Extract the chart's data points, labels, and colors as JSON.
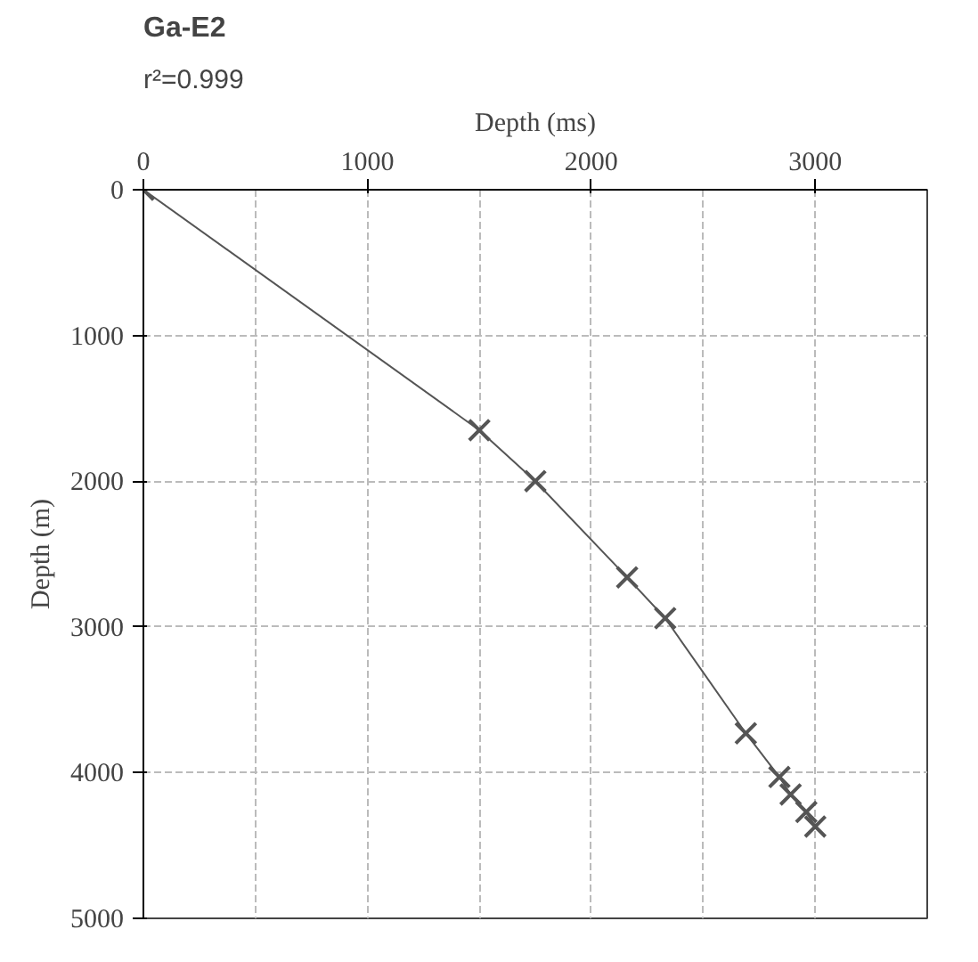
{
  "chart_data": {
    "type": "line",
    "title": "Ga-E2",
    "subtitle": "r²=0.999",
    "xlabel": "Depth (ms)",
    "ylabel": "Depth (m)",
    "x": [
      0,
      1500,
      1750,
      2160,
      2330,
      2690,
      2840,
      2890,
      2960,
      3000
    ],
    "series": [
      {
        "color": "#555555",
        "values": [
          0,
          1650,
          2000,
          2660,
          2940,
          3730,
          4030,
          4150,
          4270,
          4370
        ]
      }
    ],
    "xlim": [
      0,
      3500
    ],
    "ylim": [
      5000,
      0
    ],
    "xticks": [
      0,
      1000,
      2000,
      3000
    ],
    "yticks": [
      0,
      1000,
      2000,
      3000,
      4000,
      5000
    ],
    "grid": true,
    "marker": "cross",
    "line_style": "solid"
  }
}
